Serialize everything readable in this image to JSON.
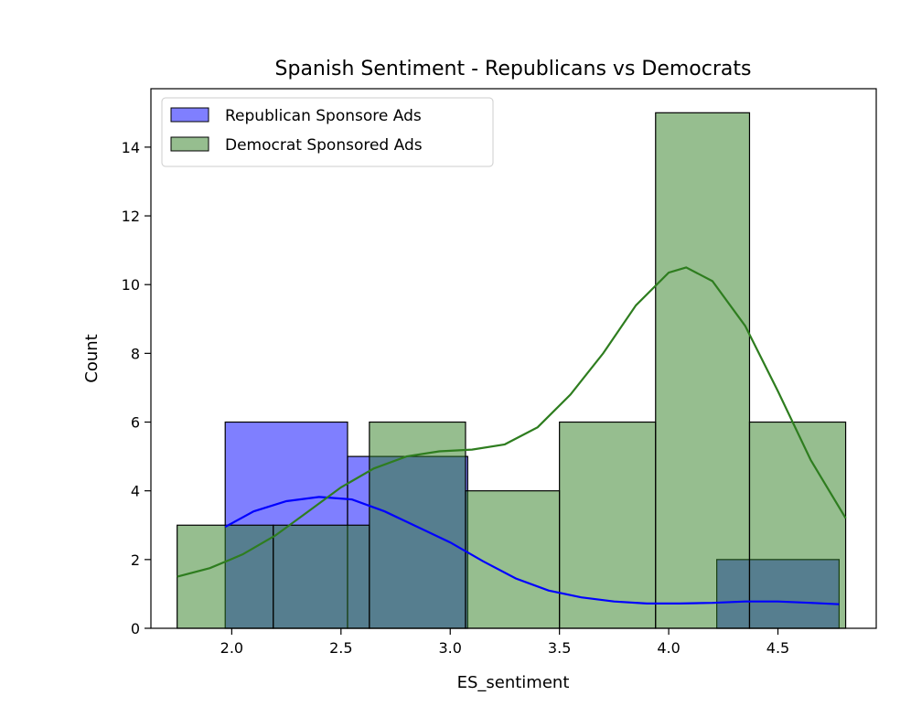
{
  "chart_data": {
    "type": "bar",
    "title": "Spanish Sentiment - Republicans vs Democrats",
    "xlabel": "ES_sentiment",
    "ylabel": "Count",
    "xlim": [
      1.63,
      4.95
    ],
    "ylim": [
      0,
      15.7
    ],
    "xticks": [
      "2.0",
      "2.5",
      "3.0",
      "3.5",
      "4.0",
      "4.5"
    ],
    "yticks": [
      "0",
      "2",
      "4",
      "6",
      "8",
      "10",
      "12",
      "14"
    ],
    "grid": false,
    "legend_position": "upper-left",
    "series": [
      {
        "name": "Republican Sponsore Ads",
        "color": "#0000ff",
        "bins": [
          {
            "x0": 1.97,
            "x1": 2.53,
            "count": 6
          },
          {
            "x0": 2.53,
            "x1": 3.08,
            "count": 5
          },
          {
            "x0": 4.22,
            "x1": 4.78,
            "count": 2
          }
        ],
        "kde": [
          [
            1.97,
            2.95
          ],
          [
            2.1,
            3.4
          ],
          [
            2.25,
            3.7
          ],
          [
            2.4,
            3.82
          ],
          [
            2.55,
            3.75
          ],
          [
            2.7,
            3.4
          ],
          [
            2.85,
            2.95
          ],
          [
            3.0,
            2.5
          ],
          [
            3.15,
            1.95
          ],
          [
            3.3,
            1.45
          ],
          [
            3.45,
            1.1
          ],
          [
            3.6,
            0.9
          ],
          [
            3.75,
            0.78
          ],
          [
            3.9,
            0.72
          ],
          [
            4.05,
            0.72
          ],
          [
            4.2,
            0.74
          ],
          [
            4.35,
            0.78
          ],
          [
            4.5,
            0.78
          ],
          [
            4.65,
            0.74
          ],
          [
            4.78,
            0.7
          ]
        ]
      },
      {
        "name": "Democrat Sponsored Ads",
        "color": "#2e7d1f",
        "bins": [
          {
            "x0": 1.75,
            "x1": 2.19,
            "count": 3
          },
          {
            "x0": 2.19,
            "x1": 2.63,
            "count": 3
          },
          {
            "x0": 2.63,
            "x1": 3.07,
            "count": 6
          },
          {
            "x0": 3.07,
            "x1": 3.5,
            "count": 4
          },
          {
            "x0": 3.5,
            "x1": 3.94,
            "count": 6
          },
          {
            "x0": 3.94,
            "x1": 4.37,
            "count": 15
          },
          {
            "x0": 4.37,
            "x1": 4.81,
            "count": 6
          }
        ],
        "kde": [
          [
            1.75,
            1.5
          ],
          [
            1.9,
            1.75
          ],
          [
            2.05,
            2.15
          ],
          [
            2.2,
            2.7
          ],
          [
            2.35,
            3.4
          ],
          [
            2.5,
            4.1
          ],
          [
            2.65,
            4.65
          ],
          [
            2.8,
            5.0
          ],
          [
            2.95,
            5.15
          ],
          [
            3.1,
            5.2
          ],
          [
            3.25,
            5.35
          ],
          [
            3.4,
            5.85
          ],
          [
            3.55,
            6.8
          ],
          [
            3.7,
            8.0
          ],
          [
            3.85,
            9.4
          ],
          [
            4.0,
            10.35
          ],
          [
            4.08,
            10.5
          ],
          [
            4.2,
            10.1
          ],
          [
            4.35,
            8.8
          ],
          [
            4.5,
            6.9
          ],
          [
            4.65,
            4.9
          ],
          [
            4.81,
            3.2
          ]
        ]
      }
    ]
  }
}
